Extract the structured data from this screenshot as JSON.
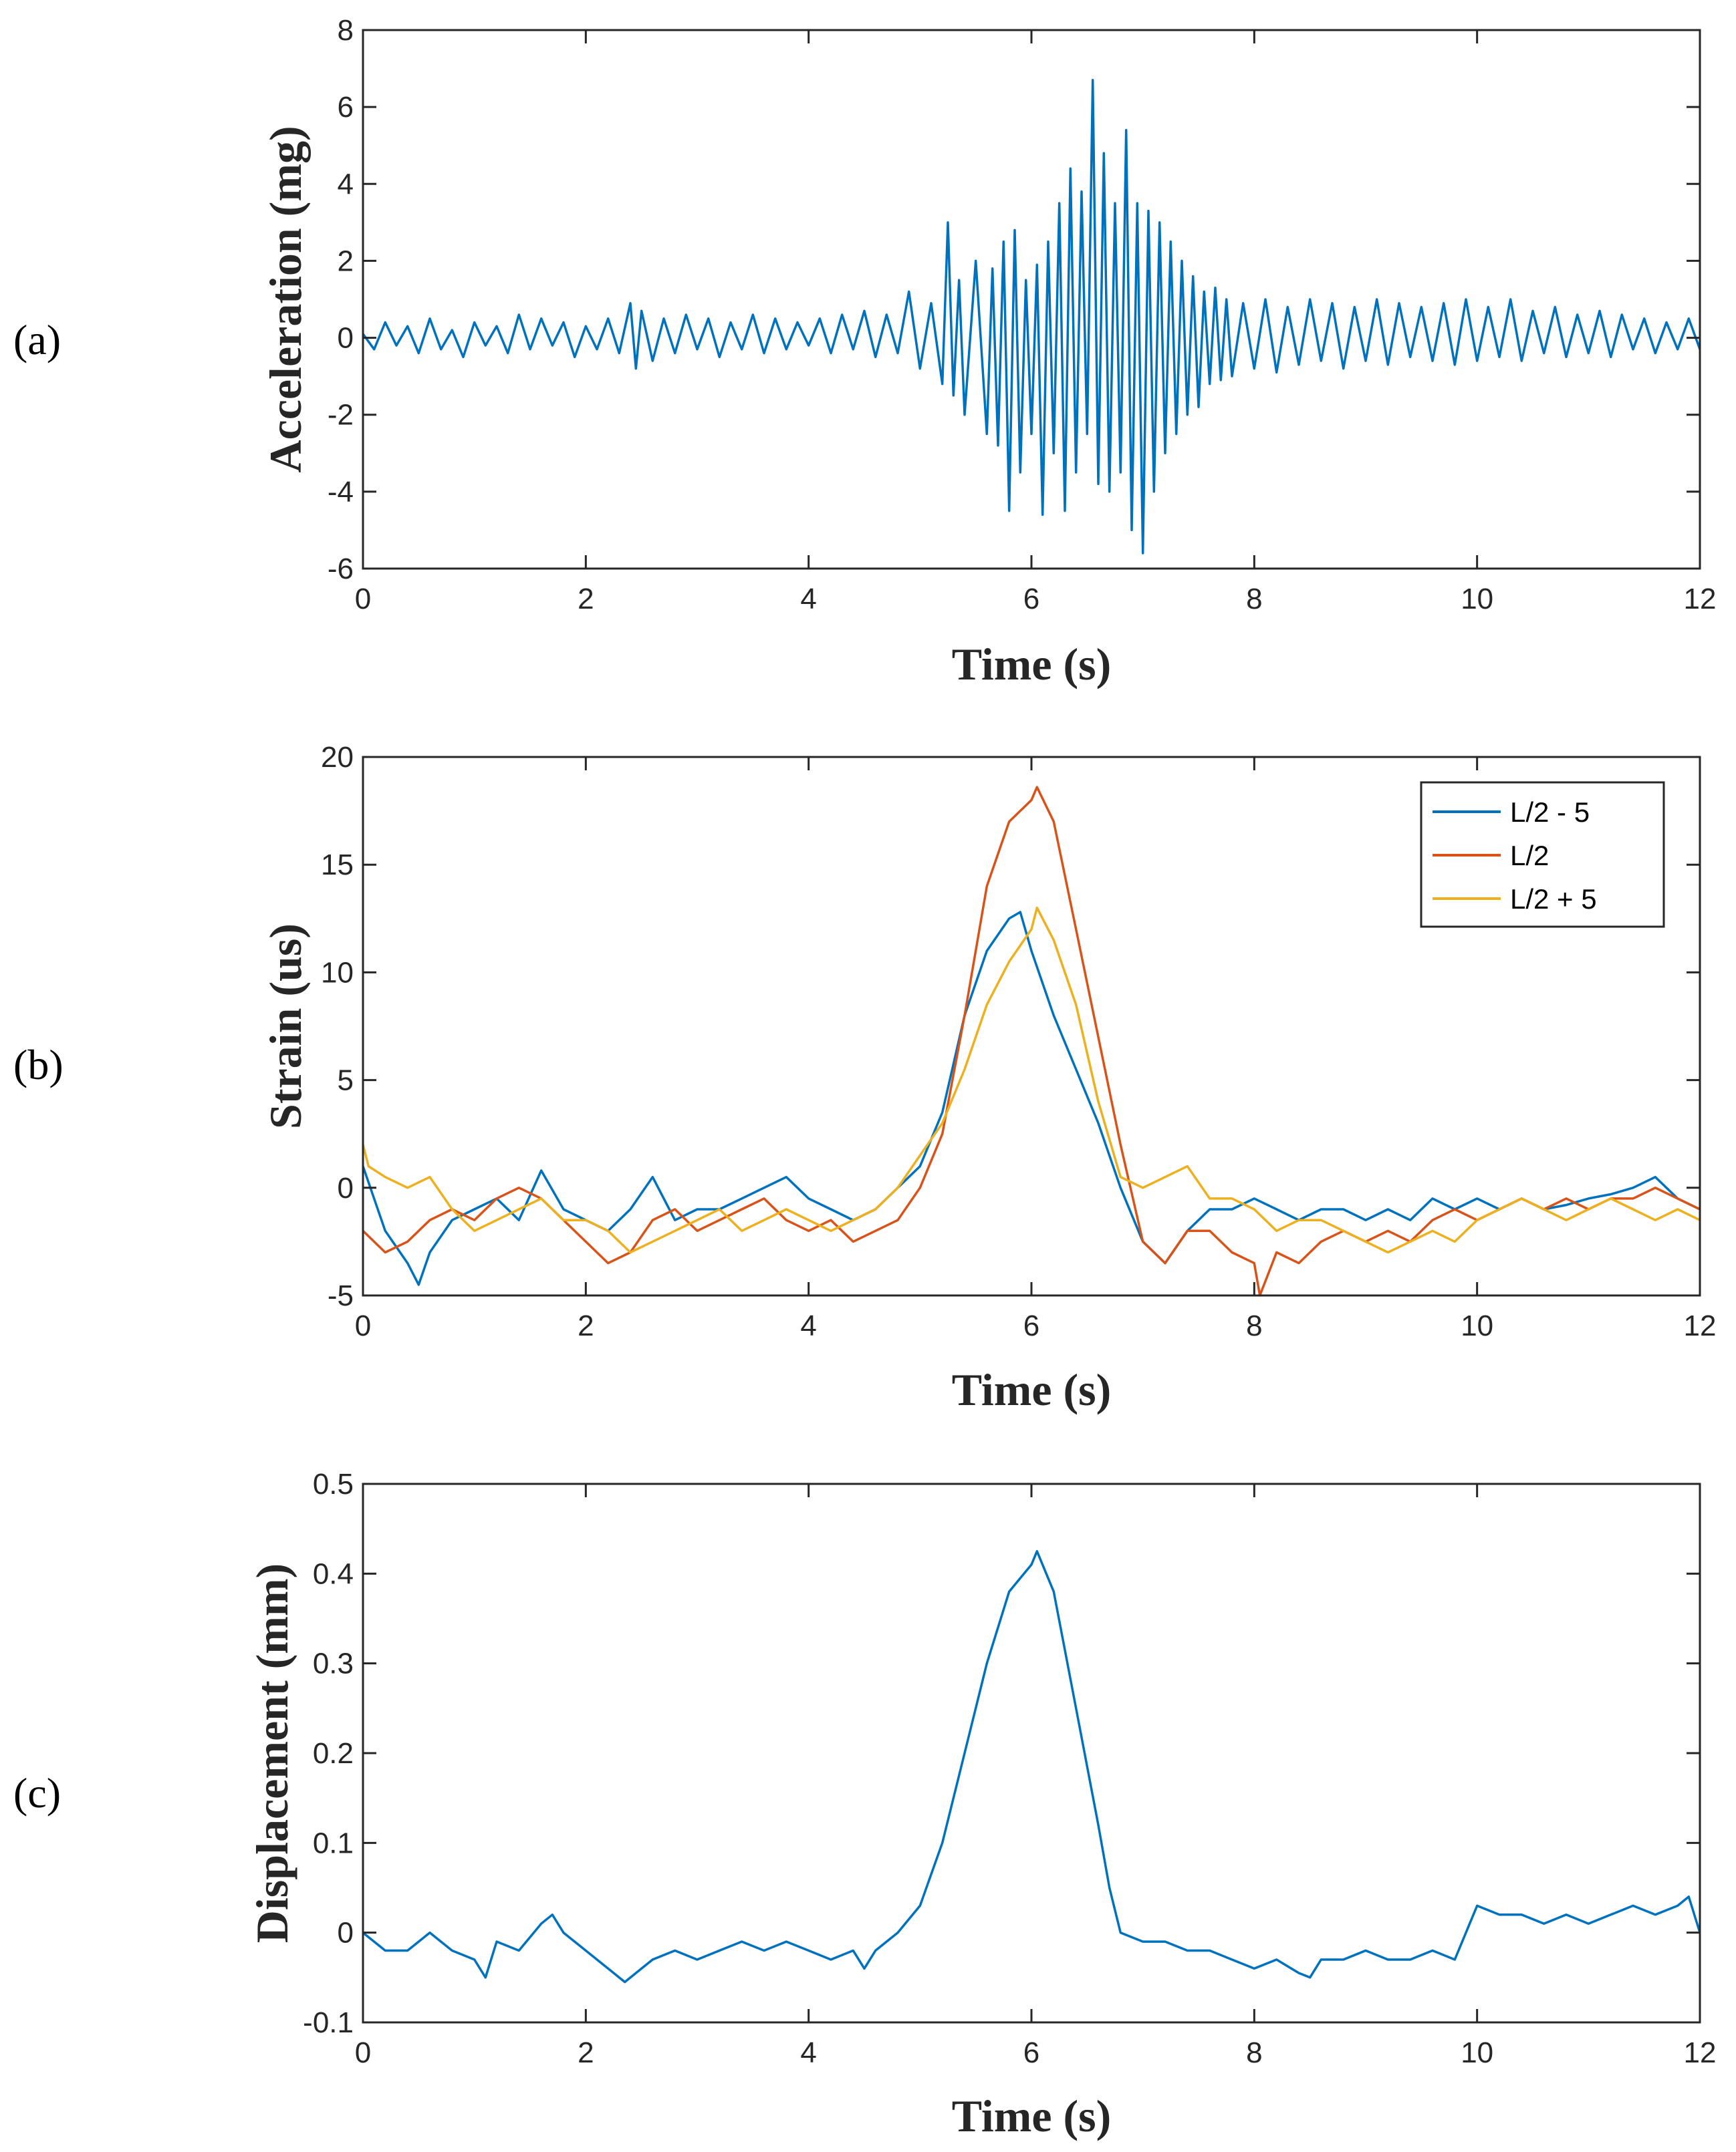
{
  "colors": {
    "blue": "#0072BD",
    "red": "#D95319",
    "yellow": "#EDB120",
    "axis": "#262626"
  },
  "chart_data": [
    {
      "panel": "(a)",
      "type": "line",
      "title": "",
      "xlabel": "Time (s)",
      "ylabel": "Acceleration (mg)",
      "xlim": [
        0,
        12
      ],
      "ylim": [
        -6,
        8
      ],
      "xticks": [
        0,
        2,
        4,
        6,
        8,
        10,
        12
      ],
      "yticks": [
        -6,
        -4,
        -2,
        0,
        2,
        4,
        6,
        8
      ],
      "legend": null,
      "series": [
        {
          "name": "Acceleration",
          "color": "#0072BD",
          "x": [
            0.0,
            0.1,
            0.2,
            0.3,
            0.4,
            0.5,
            0.6,
            0.7,
            0.8,
            0.9,
            1.0,
            1.1,
            1.2,
            1.3,
            1.4,
            1.5,
            1.6,
            1.7,
            1.8,
            1.9,
            2.0,
            2.1,
            2.2,
            2.3,
            2.4,
            2.45,
            2.5,
            2.6,
            2.7,
            2.8,
            2.9,
            3.0,
            3.1,
            3.2,
            3.3,
            3.4,
            3.5,
            3.6,
            3.7,
            3.8,
            3.9,
            4.0,
            4.1,
            4.2,
            4.3,
            4.4,
            4.5,
            4.6,
            4.7,
            4.8,
            4.9,
            5.0,
            5.1,
            5.2,
            5.25,
            5.3,
            5.35,
            5.4,
            5.5,
            5.6,
            5.65,
            5.7,
            5.75,
            5.8,
            5.85,
            5.9,
            5.95,
            6.0,
            6.05,
            6.1,
            6.15,
            6.2,
            6.25,
            6.3,
            6.35,
            6.4,
            6.45,
            6.5,
            6.55,
            6.6,
            6.65,
            6.7,
            6.75,
            6.8,
            6.85,
            6.9,
            6.95,
            7.0,
            7.05,
            7.1,
            7.15,
            7.2,
            7.25,
            7.3,
            7.35,
            7.4,
            7.45,
            7.5,
            7.55,
            7.6,
            7.65,
            7.7,
            7.75,
            7.8,
            7.9,
            8.0,
            8.1,
            8.2,
            8.3,
            8.4,
            8.5,
            8.6,
            8.7,
            8.8,
            8.9,
            9.0,
            9.1,
            9.2,
            9.3,
            9.4,
            9.5,
            9.6,
            9.7,
            9.8,
            9.9,
            10.0,
            10.1,
            10.2,
            10.3,
            10.4,
            10.5,
            10.6,
            10.7,
            10.8,
            10.9,
            11.0,
            11.1,
            11.2,
            11.3,
            11.4,
            11.5,
            11.6,
            11.7,
            11.8,
            11.9,
            12.0
          ],
          "y": [
            0.1,
            -0.3,
            0.4,
            -0.2,
            0.3,
            -0.4,
            0.5,
            -0.3,
            0.2,
            -0.5,
            0.4,
            -0.2,
            0.3,
            -0.4,
            0.6,
            -0.3,
            0.5,
            -0.2,
            0.4,
            -0.5,
            0.3,
            -0.3,
            0.5,
            -0.4,
            0.9,
            -0.8,
            0.7,
            -0.6,
            0.5,
            -0.4,
            0.6,
            -0.3,
            0.5,
            -0.5,
            0.4,
            -0.3,
            0.6,
            -0.4,
            0.5,
            -0.3,
            0.4,
            -0.2,
            0.5,
            -0.4,
            0.6,
            -0.3,
            0.7,
            -0.5,
            0.6,
            -0.4,
            1.2,
            -0.8,
            0.9,
            -1.2,
            3.0,
            -1.5,
            1.5,
            -2.0,
            2.0,
            -2.5,
            1.8,
            -2.8,
            2.5,
            -4.5,
            2.8,
            -3.5,
            1.5,
            -2.5,
            1.9,
            -4.6,
            2.5,
            -3.0,
            3.5,
            -4.5,
            4.4,
            -3.5,
            3.8,
            -2.5,
            6.7,
            -3.8,
            4.8,
            -4.0,
            3.5,
            -3.5,
            5.4,
            -5.0,
            3.5,
            -5.6,
            3.3,
            -4.0,
            3.0,
            -3.0,
            2.5,
            -2.5,
            2.0,
            -2.0,
            1.6,
            -1.8,
            1.2,
            -1.2,
            1.3,
            -1.1,
            1.0,
            -1.0,
            0.9,
            -0.8,
            1.0,
            -0.9,
            0.8,
            -0.7,
            1.0,
            -0.6,
            0.9,
            -0.8,
            0.8,
            -0.6,
            1.0,
            -0.7,
            0.9,
            -0.5,
            0.8,
            -0.6,
            0.9,
            -0.7,
            1.0,
            -0.6,
            0.8,
            -0.5,
            1.0,
            -0.6,
            0.7,
            -0.4,
            0.8,
            -0.5,
            0.6,
            -0.4,
            0.7,
            -0.5,
            0.6,
            -0.3,
            0.5,
            -0.4,
            0.4,
            -0.3,
            0.5,
            -0.3
          ]
        }
      ]
    },
    {
      "panel": "(b)",
      "type": "line",
      "title": "",
      "xlabel": "Time (s)",
      "ylabel": "Strain (us)",
      "xlim": [
        0,
        12
      ],
      "ylim": [
        -5,
        20
      ],
      "xticks": [
        0,
        2,
        4,
        6,
        8,
        10,
        12
      ],
      "yticks": [
        -5,
        0,
        5,
        10,
        15,
        20
      ],
      "legend": "top-right",
      "series": [
        {
          "name": "L/2 - 5",
          "color": "#0072BD",
          "x": [
            0.0,
            0.2,
            0.4,
            0.5,
            0.6,
            0.8,
            1.0,
            1.2,
            1.4,
            1.6,
            1.8,
            2.0,
            2.2,
            2.4,
            2.6,
            2.8,
            3.0,
            3.2,
            3.4,
            3.6,
            3.8,
            4.0,
            4.2,
            4.4,
            4.6,
            4.8,
            5.0,
            5.2,
            5.4,
            5.6,
            5.8,
            5.9,
            6.0,
            6.2,
            6.4,
            6.6,
            6.8,
            7.0,
            7.2,
            7.4,
            7.6,
            7.8,
            8.0,
            8.2,
            8.4,
            8.6,
            8.8,
            9.0,
            9.2,
            9.4,
            9.6,
            9.8,
            10.0,
            10.2,
            10.4,
            10.6,
            10.8,
            11.0,
            11.2,
            11.4,
            11.6,
            11.8,
            12.0
          ],
          "y": [
            1.0,
            -2.0,
            -3.5,
            -4.5,
            -3.0,
            -1.5,
            -1.0,
            -0.5,
            -1.5,
            0.8,
            -1.0,
            -1.5,
            -2.0,
            -1.0,
            0.5,
            -1.5,
            -1.0,
            -1.0,
            -0.5,
            0.0,
            0.5,
            -0.5,
            -1.0,
            -1.5,
            -1.0,
            0.0,
            1.0,
            3.5,
            8.0,
            11.0,
            12.5,
            12.8,
            11.0,
            8.0,
            5.5,
            3.0,
            0.0,
            -2.5,
            -3.5,
            -2.0,
            -1.0,
            -1.0,
            -0.5,
            -1.0,
            -1.5,
            -1.0,
            -1.0,
            -1.5,
            -1.0,
            -1.5,
            -0.5,
            -1.0,
            -0.5,
            -1.0,
            -0.5,
            -1.0,
            -0.8,
            -0.5,
            -0.3,
            0.0,
            0.5,
            -0.5,
            -1.0
          ]
        },
        {
          "name": "L/2",
          "color": "#D95319",
          "x": [
            0.0,
            0.2,
            0.4,
            0.6,
            0.8,
            1.0,
            1.2,
            1.4,
            1.6,
            1.8,
            2.0,
            2.2,
            2.4,
            2.6,
            2.8,
            3.0,
            3.2,
            3.4,
            3.6,
            3.8,
            4.0,
            4.2,
            4.4,
            4.6,
            4.8,
            5.0,
            5.2,
            5.4,
            5.6,
            5.8,
            6.0,
            6.05,
            6.2,
            6.4,
            6.6,
            6.8,
            7.0,
            7.2,
            7.4,
            7.6,
            7.8,
            8.0,
            8.05,
            8.2,
            8.4,
            8.6,
            8.8,
            9.0,
            9.2,
            9.4,
            9.6,
            9.8,
            10.0,
            10.2,
            10.4,
            10.6,
            10.8,
            11.0,
            11.2,
            11.4,
            11.6,
            11.8,
            12.0
          ],
          "y": [
            -2.0,
            -3.0,
            -2.5,
            -1.5,
            -1.0,
            -1.5,
            -0.5,
            0.0,
            -0.5,
            -1.5,
            -2.5,
            -3.5,
            -3.0,
            -1.5,
            -1.0,
            -2.0,
            -1.5,
            -1.0,
            -0.5,
            -1.5,
            -2.0,
            -1.5,
            -2.5,
            -2.0,
            -1.5,
            0.0,
            2.5,
            8.0,
            14.0,
            17.0,
            18.0,
            18.6,
            17.0,
            12.0,
            7.0,
            2.0,
            -2.5,
            -3.5,
            -2.0,
            -2.0,
            -3.0,
            -3.5,
            -5.0,
            -3.0,
            -3.5,
            -2.5,
            -2.0,
            -2.5,
            -2.0,
            -2.5,
            -1.5,
            -1.0,
            -1.5,
            -1.0,
            -0.5,
            -1.0,
            -0.5,
            -1.0,
            -0.5,
            -0.5,
            0.0,
            -0.5,
            -1.0
          ]
        },
        {
          "name": "L/2 + 5",
          "color": "#EDB120",
          "x": [
            0.0,
            0.05,
            0.2,
            0.4,
            0.6,
            0.8,
            1.0,
            1.2,
            1.4,
            1.6,
            1.8,
            2.0,
            2.2,
            2.4,
            2.6,
            2.8,
            3.0,
            3.2,
            3.4,
            3.6,
            3.8,
            4.0,
            4.2,
            4.4,
            4.6,
            4.8,
            5.0,
            5.2,
            5.4,
            5.6,
            5.8,
            6.0,
            6.05,
            6.2,
            6.4,
            6.6,
            6.8,
            7.0,
            7.2,
            7.4,
            7.6,
            7.8,
            8.0,
            8.2,
            8.4,
            8.6,
            8.8,
            9.0,
            9.2,
            9.4,
            9.6,
            9.8,
            10.0,
            10.2,
            10.4,
            10.6,
            10.8,
            11.0,
            11.2,
            11.4,
            11.6,
            11.8,
            12.0
          ],
          "y": [
            2.0,
            1.0,
            0.5,
            0.0,
            0.5,
            -1.0,
            -2.0,
            -1.5,
            -1.0,
            -0.5,
            -1.5,
            -1.5,
            -2.0,
            -3.0,
            -2.5,
            -2.0,
            -1.5,
            -1.0,
            -2.0,
            -1.5,
            -1.0,
            -1.5,
            -2.0,
            -1.5,
            -1.0,
            0.0,
            1.5,
            3.0,
            5.5,
            8.5,
            10.5,
            12.0,
            13.0,
            11.5,
            8.5,
            4.0,
            0.5,
            0.0,
            0.5,
            1.0,
            -0.5,
            -0.5,
            -1.0,
            -2.0,
            -1.5,
            -1.5,
            -2.0,
            -2.5,
            -3.0,
            -2.5,
            -2.0,
            -2.5,
            -1.5,
            -1.0,
            -0.5,
            -1.0,
            -1.5,
            -1.0,
            -0.5,
            -1.0,
            -1.5,
            -1.0,
            -1.5
          ]
        }
      ]
    },
    {
      "panel": "(c)",
      "type": "line",
      "title": "",
      "xlabel": "Time (s)",
      "ylabel": "Displacement (mm)",
      "xlim": [
        0,
        12
      ],
      "ylim": [
        -0.1,
        0.5
      ],
      "xticks": [
        0,
        2,
        4,
        6,
        8,
        10,
        12
      ],
      "yticks": [
        -0.1,
        0,
        0.1,
        0.2,
        0.3,
        0.4,
        0.5
      ],
      "legend": null,
      "series": [
        {
          "name": "Displacement",
          "color": "#0072BD",
          "x": [
            0.0,
            0.2,
            0.4,
            0.6,
            0.8,
            1.0,
            1.1,
            1.2,
            1.4,
            1.6,
            1.7,
            1.8,
            2.0,
            2.2,
            2.35,
            2.5,
            2.6,
            2.8,
            3.0,
            3.2,
            3.4,
            3.6,
            3.8,
            4.0,
            4.2,
            4.4,
            4.5,
            4.6,
            4.8,
            5.0,
            5.2,
            5.4,
            5.6,
            5.8,
            6.0,
            6.05,
            6.2,
            6.4,
            6.6,
            6.7,
            6.8,
            7.0,
            7.2,
            7.4,
            7.6,
            7.8,
            8.0,
            8.2,
            8.4,
            8.5,
            8.6,
            8.8,
            9.0,
            9.2,
            9.4,
            9.6,
            9.8,
            10.0,
            10.2,
            10.4,
            10.6,
            10.8,
            11.0,
            11.2,
            11.4,
            11.6,
            11.8,
            11.9,
            12.0
          ],
          "y": [
            0.0,
            -0.02,
            -0.02,
            0.0,
            -0.02,
            -0.03,
            -0.05,
            -0.01,
            -0.02,
            0.01,
            0.02,
            0.0,
            -0.02,
            -0.04,
            -0.055,
            -0.04,
            -0.03,
            -0.02,
            -0.03,
            -0.02,
            -0.01,
            -0.02,
            -0.01,
            -0.02,
            -0.03,
            -0.02,
            -0.04,
            -0.02,
            0.0,
            0.03,
            0.1,
            0.2,
            0.3,
            0.38,
            0.41,
            0.425,
            0.38,
            0.25,
            0.12,
            0.05,
            0.0,
            -0.01,
            -0.01,
            -0.02,
            -0.02,
            -0.03,
            -0.04,
            -0.03,
            -0.045,
            -0.05,
            -0.03,
            -0.03,
            -0.02,
            -0.03,
            -0.03,
            -0.02,
            -0.03,
            0.03,
            0.02,
            0.02,
            0.01,
            0.02,
            0.01,
            0.02,
            0.03,
            0.02,
            0.03,
            0.04,
            0.0
          ]
        }
      ]
    }
  ]
}
